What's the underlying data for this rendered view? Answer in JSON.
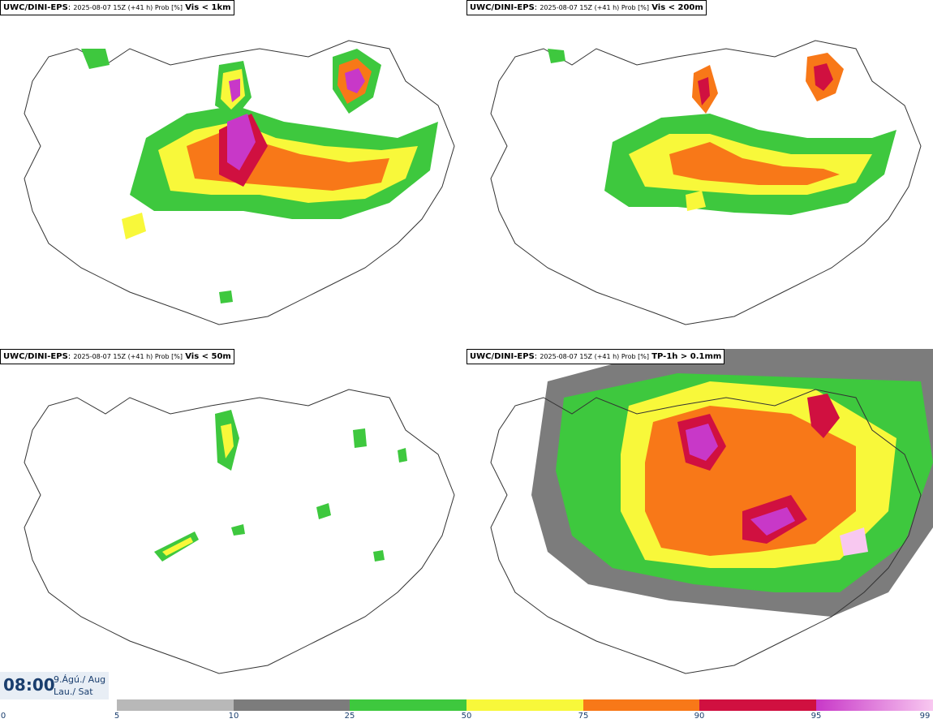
{
  "panels": [
    {
      "model": "UWC/DINI-EPS",
      "run": "2025-08-07 15Z (+41 h) Prob [%]",
      "variable": "Vis < 1km"
    },
    {
      "model": "UWC/DINI-EPS",
      "run": "2025-08-07 15Z (+41 h) Prob [%]",
      "variable": "Vis < 200m"
    },
    {
      "model": "UWC/DINI-EPS",
      "run": "2025-08-07 15Z (+41 h) Prob [%]",
      "variable": "Vis < 50m"
    },
    {
      "model": "UWC/DINI-EPS",
      "run": "2025-08-07 15Z (+41 h) Prob [%]",
      "variable": "TP-1h > 0.1mm"
    }
  ],
  "valid_time": {
    "time": "08:00",
    "date_line1": "9.Ágú./ Aug",
    "date_line2": "Lau./ Sat"
  },
  "colorbar": {
    "ticks": [
      "0",
      "5",
      "10",
      "25",
      "50",
      "75",
      "90",
      "95",
      "99"
    ],
    "colors": [
      "#ffffff",
      "#b8b8b8",
      "#7c7c7c",
      "#3ec83e",
      "#f8f83a",
      "#f87818",
      "#d01040",
      "#c838c8",
      "#f8c8f0"
    ]
  }
}
